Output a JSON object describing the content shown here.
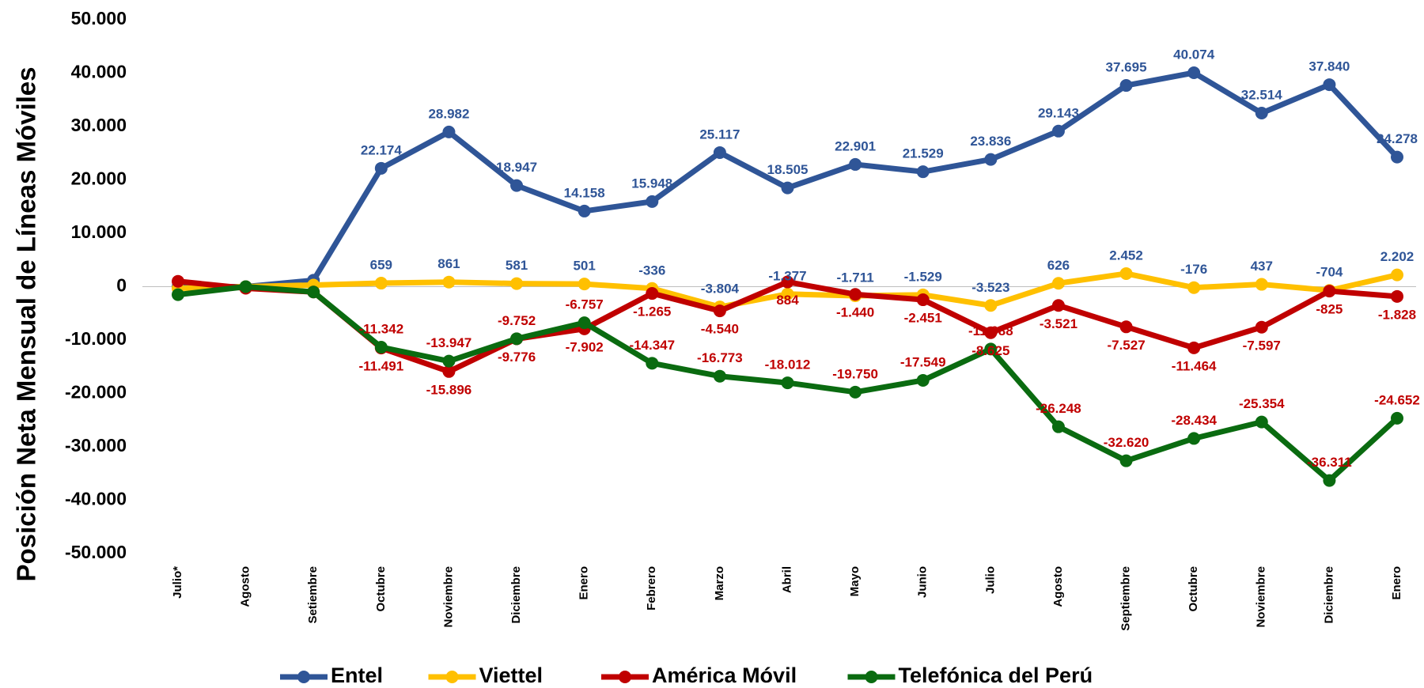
{
  "chart_data": {
    "type": "line",
    "y_label": "Posición Neta Mensual de Líneas Móviles",
    "categories": [
      "Julio*",
      "Agosto",
      "Setiembre",
      "Octubre",
      "Noviembre",
      "Diciembre",
      "Enero",
      "Febrero",
      "Marzo",
      "Abril",
      "Mayo",
      "Junio",
      "Julio",
      "Agosto",
      "Septiembre",
      "Octubre",
      "Noviembre",
      "Diciembre",
      "Enero"
    ],
    "ylim": [
      -50000,
      50000
    ],
    "yticks": [
      {
        "value": -50000,
        "label": "-50.000"
      },
      {
        "value": -40000,
        "label": "-40.000"
      },
      {
        "value": -30000,
        "label": "-30.000"
      },
      {
        "value": -20000,
        "label": "-20.000"
      },
      {
        "value": -10000,
        "label": "-10.000"
      },
      0,
      {
        "value": 10000,
        "label": "10.000"
      },
      {
        "value": 20000,
        "label": "20.000"
      },
      {
        "value": 30000,
        "label": "30.000"
      },
      {
        "value": 40000,
        "label": "40.000"
      },
      {
        "value": 50000,
        "label": "50.000"
      }
    ],
    "legend": "bottom",
    "series": [
      {
        "name": "Entel",
        "color": "#2f5597",
        "label_color": "#2f5597",
        "label_side": "above",
        "values": [
          0,
          0,
          1200,
          22174,
          28982,
          18947,
          14158,
          15948,
          25117,
          18505,
          22901,
          21529,
          23836,
          29143,
          37695,
          40074,
          32514,
          37840,
          24278
        ],
        "value_labels": [
          null,
          null,
          null,
          "22.174",
          "28.982",
          "18.947",
          "14.158",
          "15.948",
          "25.117",
          "18.505",
          "22.901",
          "21.529",
          "23.836",
          "29.143",
          "37.695",
          "40.074",
          "32.514",
          "37.840",
          "24.278"
        ]
      },
      {
        "name": "Viettel",
        "color": "#ffc000",
        "label_color": "#2f5597",
        "label_side": "above",
        "values": [
          -300,
          0,
          300,
          659,
          861,
          581,
          501,
          -336,
          -3804,
          -1377,
          -1711,
          -1529,
          -3523,
          626,
          2452,
          -176,
          437,
          -704,
          2202
        ],
        "value_labels": [
          null,
          null,
          null,
          "659",
          "861",
          "581",
          "501",
          "-336",
          "-3.804",
          "-1.377",
          "-1.711",
          "-1.529",
          "-3.523",
          "626",
          "2.452",
          "-176",
          "437",
          "-704",
          "2.202"
        ]
      },
      {
        "name": "América Móvil",
        "color": "#c00000",
        "label_color": "#c00000",
        "label_side": "below",
        "values": [
          1000,
          -300,
          -1000,
          -11491,
          -15896,
          -9776,
          -7902,
          -1265,
          -4540,
          884,
          -1440,
          -2451,
          -8625,
          -3521,
          -7527,
          -11464,
          -7597,
          -825,
          -1828
        ],
        "value_labels": [
          null,
          null,
          null,
          "-11.491",
          "-15.896",
          "-9.776",
          "-7.902",
          "-1.265",
          "-4.540",
          "884",
          "-1.440",
          "-2.451",
          "-8.625",
          "-3.521",
          "-7.527",
          "-11.464",
          "-7.597",
          "-825",
          "-1.828"
        ]
      },
      {
        "name": "Telefónica del Perú",
        "color": "#0a6b10",
        "label_color": "#c00000",
        "label_side": "above",
        "values": [
          -1500,
          0,
          -1000,
          -11342,
          -13947,
          -9752,
          -6757,
          -14347,
          -16773,
          -18012,
          -19750,
          -17549,
          -11688,
          -26248,
          -32620,
          -28434,
          -25354,
          -36311,
          -24652
        ],
        "value_labels": [
          null,
          null,
          null,
          "-11.342",
          "-13.947",
          "-9.752",
          "-6.757",
          "-14.347",
          "-16.773",
          "-18.012",
          "-19.750",
          "-17.549",
          "-11.688",
          "-26.248",
          "-32.620",
          "-28.434",
          "-25.354",
          "-36.311",
          "-24.652"
        ]
      }
    ]
  }
}
